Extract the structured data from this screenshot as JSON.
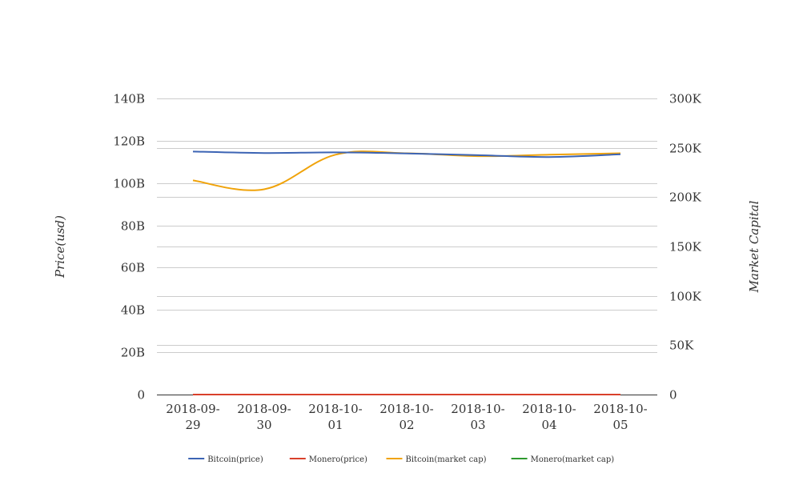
{
  "chart_data": {
    "type": "line",
    "categories": [
      "2018-09-29",
      "2018-09-30",
      "2018-10-01",
      "2018-10-02",
      "2018-10-03",
      "2018-10-04",
      "2018-10-05"
    ],
    "x_tick_labels": [
      [
        "2018-09-",
        "29"
      ],
      [
        "2018-09-",
        "30"
      ],
      [
        "2018-10-",
        "01"
      ],
      [
        "2018-10-",
        "02"
      ],
      [
        "2018-10-",
        "03"
      ],
      [
        "2018-10-",
        "04"
      ],
      [
        "2018-10-",
        "05"
      ]
    ],
    "ylabel": "Price(usd)",
    "y2label": "Market Capital",
    "ylim": [
      0,
      140000000000
    ],
    "y2lim": [
      0,
      300000
    ],
    "y_ticks": [
      0,
      20000000000,
      40000000000,
      60000000000,
      80000000000,
      100000000000,
      120000000000,
      140000000000
    ],
    "y_tick_labels": [
      "0",
      "20B",
      "40B",
      "60B",
      "80B",
      "100B",
      "120B",
      "140B"
    ],
    "y2_ticks": [
      0,
      50000,
      100000,
      150000,
      200000,
      250000,
      300000
    ],
    "y2_tick_labels": [
      "0",
      "50K",
      "100K",
      "150K",
      "200K",
      "250K",
      "300K"
    ],
    "grid": true,
    "legend_position": "bottom",
    "series": [
      {
        "name": "Bitcoin(price)",
        "axis": "left",
        "color": "#3c64b4",
        "values": [
          114900000000,
          114200000000,
          114500000000,
          114000000000,
          113200000000,
          112300000000,
          113600000000
        ]
      },
      {
        "name": "Monero(price)",
        "axis": "left",
        "color": "#d9402b",
        "values": [
          0,
          0,
          0,
          0,
          0,
          0,
          0
        ]
      },
      {
        "name": "Bitcoin(market cap)",
        "axis": "right",
        "color": "#f0a30a",
        "values": [
          217000,
          208000,
          243000,
          244500,
          241500,
          243000,
          244500
        ]
      },
      {
        "name": "Monero(market cap)",
        "axis": "right",
        "color": "#2e9a2e",
        "values": [
          0,
          0,
          0,
          0,
          0,
          0,
          0
        ]
      }
    ]
  }
}
